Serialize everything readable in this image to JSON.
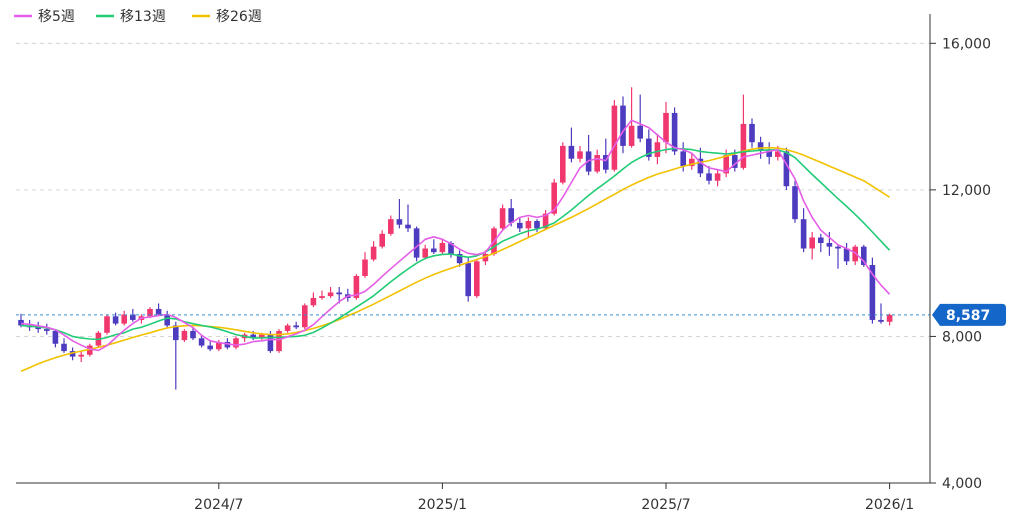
{
  "chart_data": {
    "type": "candlestick",
    "legend": [
      {
        "name": "移5週",
        "color": "#e55ee7"
      },
      {
        "name": "移13週",
        "color": "#22cc77"
      },
      {
        "name": "移26週",
        "color": "#f2c200"
      }
    ],
    "y_ticks": [
      "16,000",
      "12,000",
      "8,000",
      "4,000"
    ],
    "y_tick_values": [
      16000,
      12000,
      8000,
      4000
    ],
    "ylim": [
      4000,
      16800
    ],
    "x_ticks": [
      {
        "label": "2024/7",
        "index": 23
      },
      {
        "label": "2025/1",
        "index": 49
      },
      {
        "label": "2025/7",
        "index": 75
      },
      {
        "label": "2026/1",
        "index": 101
      }
    ],
    "last_price": 8587,
    "last_price_label": "8,587",
    "up_color": "#f0386e",
    "down_color": "#4d3cc0",
    "grid": true,
    "legend_position": "top-left",
    "candles": [
      [
        8450,
        8620,
        8250,
        8300
      ],
      [
        8300,
        8450,
        8150,
        8250
      ],
      [
        8250,
        8400,
        8100,
        8200
      ],
      [
        8200,
        8350,
        8050,
        8150
      ],
      [
        8150,
        8200,
        7700,
        7800
      ],
      [
        7800,
        7950,
        7550,
        7600
      ],
      [
        7600,
        7700,
        7350,
        7450
      ],
      [
        7450,
        7600,
        7300,
        7500
      ],
      [
        7500,
        7800,
        7450,
        7750
      ],
      [
        7750,
        8150,
        7700,
        8100
      ],
      [
        8100,
        8600,
        8050,
        8550
      ],
      [
        8550,
        8650,
        8300,
        8350
      ],
      [
        8350,
        8700,
        8300,
        8600
      ],
      [
        8600,
        8750,
        8400,
        8450
      ],
      [
        8450,
        8600,
        8350,
        8550
      ],
      [
        8550,
        8800,
        8500,
        8750
      ],
      [
        8750,
        8900,
        8550,
        8600
      ],
      [
        8600,
        8700,
        8250,
        8300
      ],
      [
        8300,
        8400,
        6550,
        7900
      ],
      [
        7900,
        8200,
        7850,
        8150
      ],
      [
        8150,
        8250,
        7900,
        7950
      ],
      [
        7950,
        8050,
        7700,
        7750
      ],
      [
        7750,
        7900,
        7600,
        7650
      ],
      [
        7650,
        7900,
        7600,
        7850
      ],
      [
        7850,
        7950,
        7650,
        7700
      ],
      [
        7700,
        8000,
        7650,
        7950
      ],
      [
        7950,
        8100,
        7850,
        8050
      ],
      [
        8050,
        8150,
        7900,
        7950
      ],
      [
        7950,
        8100,
        7900,
        8050
      ],
      [
        8050,
        8150,
        7550,
        7600
      ],
      [
        7600,
        8200,
        7550,
        8150
      ],
      [
        8150,
        8350,
        8100,
        8300
      ],
      [
        8300,
        8400,
        8200,
        8250
      ],
      [
        8250,
        8900,
        8200,
        8850
      ],
      [
        8850,
        9200,
        8800,
        9050
      ],
      [
        9050,
        9250,
        9000,
        9100
      ],
      [
        9100,
        9350,
        9050,
        9200
      ],
      [
        9200,
        9350,
        8900,
        9150
      ],
      [
        9150,
        9300,
        8950,
        9050
      ],
      [
        9050,
        9700,
        9000,
        9650
      ],
      [
        9650,
        10300,
        9600,
        10100
      ],
      [
        10100,
        10600,
        10050,
        10450
      ],
      [
        10450,
        10900,
        10400,
        10800
      ],
      [
        10800,
        11300,
        10750,
        11200
      ],
      [
        11200,
        11750,
        10950,
        11050
      ],
      [
        11050,
        11600,
        10850,
        10950
      ],
      [
        10950,
        11000,
        10050,
        10150
      ],
      [
        10150,
        10500,
        10100,
        10400
      ],
      [
        10400,
        10650,
        10250,
        10300
      ],
      [
        10300,
        10650,
        10250,
        10550
      ],
      [
        10550,
        10600,
        10150,
        10250
      ],
      [
        10250,
        10350,
        9900,
        10000
      ],
      [
        10000,
        10150,
        8950,
        9100
      ],
      [
        9100,
        10100,
        9050,
        10050
      ],
      [
        10050,
        10350,
        9950,
        10250
      ],
      [
        10250,
        11000,
        10200,
        10950
      ],
      [
        10950,
        11600,
        10900,
        11500
      ],
      [
        11500,
        11750,
        11000,
        11100
      ],
      [
        11100,
        11250,
        10850,
        10950
      ],
      [
        10950,
        11250,
        10700,
        11150
      ],
      [
        11150,
        11200,
        10850,
        10950
      ],
      [
        10950,
        11450,
        10900,
        11350
      ],
      [
        11350,
        12300,
        11300,
        12200
      ],
      [
        12200,
        13300,
        12150,
        13200
      ],
      [
        13200,
        13700,
        12750,
        12850
      ],
      [
        12850,
        13200,
        12750,
        13050
      ],
      [
        13050,
        13500,
        12400,
        12500
      ],
      [
        12500,
        13100,
        12450,
        12950
      ],
      [
        12950,
        13400,
        12450,
        12550
      ],
      [
        12550,
        14450,
        12500,
        14300
      ],
      [
        14300,
        14550,
        13000,
        13200
      ],
      [
        13200,
        14800,
        13150,
        13750
      ],
      [
        13750,
        14600,
        13300,
        13400
      ],
      [
        13400,
        13650,
        12800,
        12900
      ],
      [
        12900,
        13500,
        12700,
        13300
      ],
      [
        13300,
        14400,
        13000,
        14100
      ],
      [
        14100,
        14250,
        12950,
        13050
      ],
      [
        13050,
        13300,
        12500,
        12650
      ],
      [
        12650,
        13000,
        12550,
        12850
      ],
      [
        12850,
        13150,
        12350,
        12450
      ],
      [
        12450,
        12650,
        12150,
        12250
      ],
      [
        12250,
        12550,
        12100,
        12450
      ],
      [
        12450,
        13100,
        12350,
        12950
      ],
      [
        12950,
        13100,
        12500,
        12600
      ],
      [
        12600,
        14600,
        12550,
        13800
      ],
      [
        13800,
        13950,
        13150,
        13300
      ],
      [
        13300,
        13450,
        12850,
        13100
      ],
      [
        13100,
        13300,
        12700,
        12900
      ],
      [
        12900,
        13200,
        12800,
        13050
      ],
      [
        13050,
        13150,
        12000,
        12100
      ],
      [
        12100,
        12250,
        11100,
        11200
      ],
      [
        11200,
        11500,
        10300,
        10400
      ],
      [
        10400,
        10850,
        10100,
        10700
      ],
      [
        10700,
        10800,
        10300,
        10550
      ],
      [
        10550,
        10850,
        10200,
        10450
      ],
      [
        10450,
        10500,
        9850,
        10400
      ],
      [
        10400,
        10550,
        9950,
        10050
      ],
      [
        10050,
        10500,
        9950,
        10450
      ],
      [
        10450,
        10500,
        9900,
        9950
      ],
      [
        9950,
        10150,
        8350,
        8450
      ],
      [
        8450,
        8900,
        8350,
        8400
      ],
      [
        8400,
        8620,
        8300,
        8587
      ]
    ],
    "ma5": [
      8350,
      8330,
      8290,
      8250,
      8180,
      8040,
      7880,
      7760,
      7660,
      7620,
      7750,
      7960,
      8170,
      8350,
      8500,
      8530,
      8570,
      8600,
      8520,
      8380,
      8240,
      8030,
      7880,
      7830,
      7800,
      7760,
      7790,
      7860,
      7880,
      7920,
      7910,
      7990,
      8070,
      8170,
      8320,
      8540,
      8750,
      8950,
      9100,
      9130,
      9230,
      9420,
      9640,
      9850,
      10050,
      10250,
      10450,
      10650,
      10720,
      10650,
      10530,
      10380,
      10270,
      10230,
      10300,
      10600,
      10900,
      11100,
      11250,
      11300,
      11250,
      11300,
      11450,
      11800,
      12200,
      12600,
      12800,
      12850,
      12800,
      13200,
      13600,
      13900,
      13800,
      13700,
      13500,
      13300,
      13150,
      13100,
      13000,
      12750,
      12600,
      12550,
      12500,
      12700,
      12900,
      12950,
      13000,
      13050,
      13100,
      12700,
      12300,
      11700,
      11250,
      10900,
      10700,
      10500,
      10400,
      10280,
      10050,
      9700,
      9400,
      9150
    ],
    "ma13": [
      8300,
      8280,
      8260,
      8230,
      8180,
      8100,
      8000,
      7960,
      7930,
      7920,
      7970,
      8050,
      8100,
      8200,
      8250,
      8330,
      8420,
      8500,
      8480,
      8400,
      8350,
      8300,
      8260,
      8200,
      8130,
      8050,
      8000,
      7960,
      7960,
      7970,
      7970,
      7990,
      8000,
      8030,
      8110,
      8230,
      8360,
      8500,
      8650,
      8800,
      8950,
      9110,
      9300,
      9490,
      9670,
      9840,
      10000,
      10130,
      10200,
      10240,
      10250,
      10200,
      10160,
      10200,
      10300,
      10450,
      10600,
      10700,
      10800,
      10880,
      10930,
      11000,
      11100,
      11270,
      11450,
      11650,
      11850,
      12030,
      12200,
      12380,
      12570,
      12750,
      12880,
      12990,
      13050,
      13100,
      13130,
      13120,
      13100,
      13050,
      13020,
      13000,
      12980,
      13010,
      13040,
      13060,
      13080,
      13090,
      13090,
      13020,
      12880,
      12650,
      12420,
      12200,
      11980,
      11760,
      11550,
      11330,
      11100,
      10850,
      10600,
      10350
    ],
    "ma26": [
      7050,
      7150,
      7250,
      7340,
      7420,
      7490,
      7550,
      7600,
      7650,
      7700,
      7760,
      7830,
      7900,
      7970,
      8040,
      8100,
      8170,
      8230,
      8270,
      8290,
      8300,
      8290,
      8270,
      8250,
      8220,
      8180,
      8140,
      8100,
      8070,
      8050,
      8050,
      8070,
      8110,
      8160,
      8220,
      8290,
      8370,
      8460,
      8560,
      8660,
      8770,
      8880,
      9000,
      9120,
      9240,
      9360,
      9480,
      9590,
      9690,
      9780,
      9860,
      9940,
      10020,
      10100,
      10180,
      10270,
      10370,
      10480,
      10590,
      10700,
      10810,
      10920,
      11030,
      11140,
      11250,
      11370,
      11490,
      11620,
      11750,
      11880,
      12010,
      12130,
      12240,
      12340,
      12430,
      12500,
      12570,
      12640,
      12700,
      12750,
      12800,
      12860,
      12920,
      12990,
      13060,
      13110,
      13140,
      13150,
      13140,
      13100,
      13030,
      12950,
      12850,
      12750,
      12650,
      12550,
      12450,
      12350,
      12250,
      12100,
      11950,
      11800
    ]
  }
}
